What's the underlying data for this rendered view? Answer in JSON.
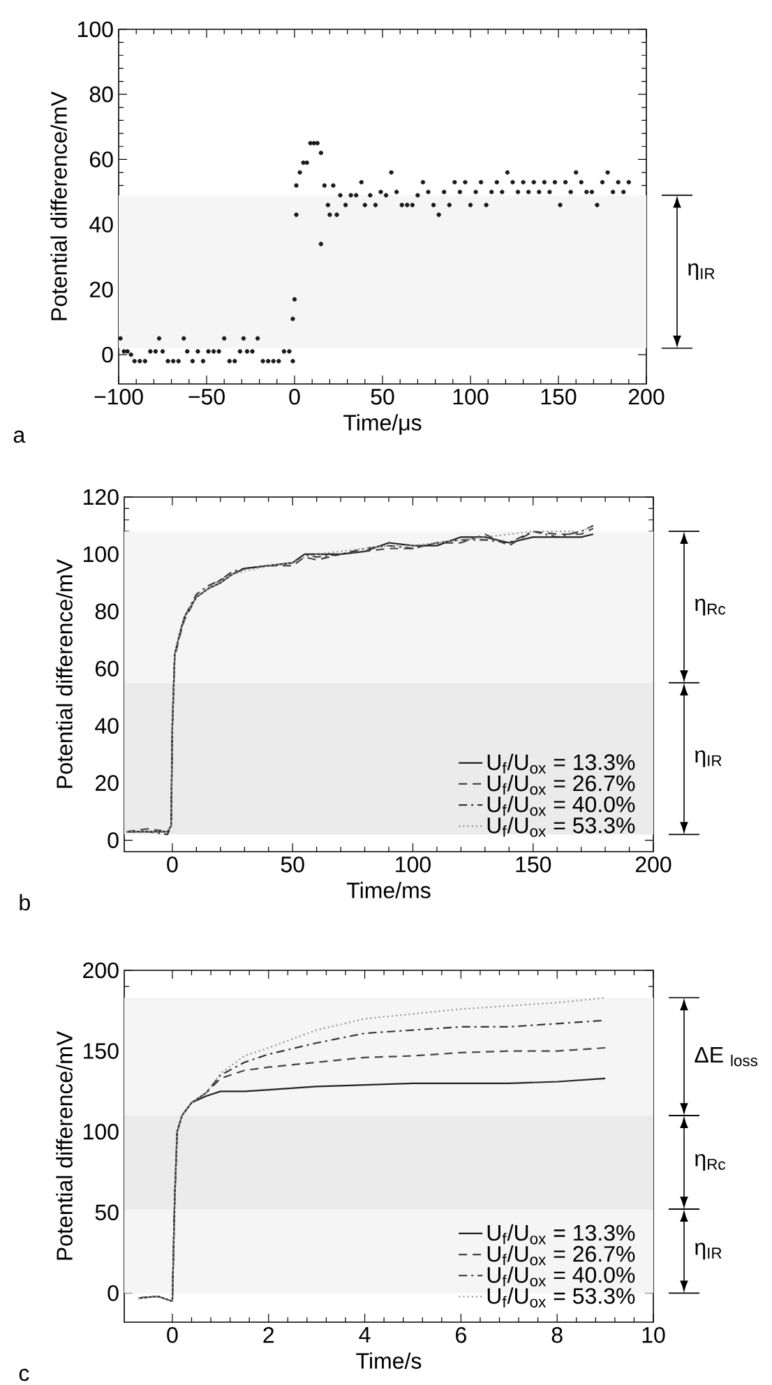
{
  "chart_data": [
    {
      "type": "scatter",
      "xlabel": "Time/μs",
      "ylabel": "Potential difference/mV",
      "color": "#1a1a1a",
      "marker": "circle",
      "x": [
        -99,
        -97,
        -95,
        -93,
        -91,
        -88,
        -85,
        -82,
        -79,
        -77,
        -75,
        -72,
        -69,
        -66,
        -63,
        -61,
        -58,
        -55,
        -52,
        -49,
        -46,
        -43,
        -40,
        -37,
        -34,
        -31,
        -29,
        -27,
        -24,
        -21,
        -18,
        -15,
        -12,
        -9,
        -6,
        -3,
        -1,
        -1,
        0,
        1,
        1,
        3,
        5,
        7,
        9,
        11,
        13,
        15,
        15,
        17,
        19,
        20,
        22,
        24,
        26,
        29,
        32,
        35,
        38,
        40,
        43,
        46,
        49,
        52,
        55,
        58,
        61,
        64,
        67,
        70,
        73,
        76,
        79,
        82,
        85,
        88,
        91,
        94,
        97,
        100,
        103,
        106,
        109,
        112,
        115,
        118,
        121,
        124,
        127,
        130,
        133,
        136,
        139,
        142,
        145,
        148,
        151,
        154,
        157,
        160,
        163,
        166,
        169,
        172,
        175,
        178,
        181,
        184,
        187,
        190
      ],
      "values": [
        5,
        1,
        1,
        0,
        -2,
        -2,
        -2,
        1,
        1,
        5,
        1,
        -2,
        -2,
        -2,
        5,
        1,
        -2,
        1,
        -2,
        1,
        1,
        1,
        5,
        -2,
        -2,
        1,
        5,
        1,
        1,
        5,
        -2,
        -2,
        -2,
        -2,
        1,
        1,
        -2,
        11,
        17,
        43,
        52,
        56,
        59,
        59,
        65,
        65,
        65,
        62,
        34,
        52,
        46,
        43,
        52,
        43,
        49,
        46,
        49,
        49,
        53,
        46,
        49,
        46,
        50,
        49,
        56,
        50,
        46,
        46,
        46,
        49,
        53,
        50,
        46,
        43,
        50,
        46,
        53,
        50,
        53,
        46,
        50,
        53,
        46,
        50,
        53,
        50,
        56,
        53,
        50,
        53,
        50,
        53,
        50,
        53,
        50,
        53,
        46,
        53,
        50,
        56,
        53,
        50,
        50,
        46,
        53,
        56,
        50,
        53,
        50,
        53
      ],
      "xlim": [
        -100,
        200
      ],
      "ylim": [
        -9,
        100
      ],
      "xticks": [
        {
          "value": -100,
          "label": "−100"
        },
        {
          "value": -50,
          "label": "−50"
        },
        0,
        50,
        100,
        150,
        200
      ],
      "yticks": [
        0,
        20,
        40,
        60,
        80,
        100
      ],
      "bands": [
        {
          "axis": "y",
          "from": 2,
          "to": 49,
          "label": "η$_{IR}$"
        }
      ],
      "annotations": [
        "a"
      ]
    },
    {
      "type": "line",
      "xlabel": "Time/ms",
      "ylabel": "Potential difference/mV",
      "legend": "bottom right",
      "series": [
        {
          "name": "U$_{f}$/U$_{ox}$ = 13.3%",
          "color": "#222222",
          "line_style": "solid",
          "x": [
            -19,
            -10,
            -2,
            -0.5,
            0,
            1,
            3,
            5,
            10,
            15,
            20,
            25,
            30,
            40,
            50,
            55,
            60,
            70,
            80,
            90,
            100,
            110,
            120,
            130,
            140,
            150,
            160,
            170,
            175
          ],
          "values": [
            3,
            3,
            3,
            5,
            40,
            65,
            72,
            78,
            85,
            88,
            90,
            93,
            95,
            96,
            97,
            100,
            100,
            100,
            101,
            104,
            103,
            103,
            106,
            106,
            104,
            106,
            106,
            106,
            107
          ]
        },
        {
          "name": "U$_{f}$/U$_{ox}$ = 26.7%",
          "color": "#444444",
          "line_style": "dashed",
          "x": [
            -19,
            -10,
            -2,
            -0.5,
            0,
            1,
            3,
            5,
            10,
            15,
            20,
            25,
            30,
            40,
            50,
            55,
            60,
            70,
            80,
            90,
            100,
            110,
            120,
            130,
            140,
            150,
            160,
            170,
            175
          ],
          "values": [
            3,
            4,
            3,
            5,
            40,
            64,
            71,
            77,
            85,
            88,
            91,
            93,
            95,
            96,
            96,
            99,
            98,
            100,
            101,
            102,
            102,
            104,
            104,
            107,
            103,
            108,
            107,
            107,
            109
          ]
        },
        {
          "name": "U$_{f}$/U$_{ox}$ = 40.0%",
          "color": "#333333",
          "line_style": "dashdot",
          "x": [
            -19,
            -10,
            -2,
            -0.5,
            0,
            1,
            3,
            5,
            10,
            15,
            20,
            25,
            30,
            40,
            50,
            55,
            60,
            70,
            80,
            90,
            100,
            110,
            120,
            130,
            140,
            150,
            160,
            170,
            175
          ],
          "values": [
            3,
            3,
            2,
            5,
            40,
            65,
            72,
            78,
            86,
            89,
            91,
            94,
            95,
            96,
            97,
            100,
            99,
            100,
            102,
            103,
            102,
            104,
            105,
            105,
            104,
            108,
            106,
            108,
            110
          ]
        },
        {
          "name": "U$_{f}$/U$_{ox}$ = 53.3%",
          "color": "#999999",
          "line_style": "dotted",
          "x": [
            -19,
            -10,
            -2,
            -0.5,
            0,
            1,
            3,
            5,
            10,
            15,
            20,
            25,
            30,
            40,
            50,
            55,
            60,
            70,
            80,
            90,
            100,
            110,
            120,
            130,
            140,
            150,
            160,
            170,
            175
          ],
          "values": [
            3,
            3,
            3,
            5,
            40,
            65,
            72,
            78,
            85,
            88,
            90,
            93,
            94,
            96,
            97,
            99,
            100,
            101,
            102,
            103,
            103,
            104,
            105,
            106,
            107,
            108,
            108,
            108,
            110
          ]
        }
      ],
      "xlim": [
        -20,
        200
      ],
      "ylim": [
        -4,
        120
      ],
      "xticks": [
        0,
        50,
        100,
        150,
        200
      ],
      "yticks": [
        0,
        20,
        40,
        60,
        80,
        100,
        120
      ],
      "bands": [
        {
          "axis": "y",
          "from": 55,
          "to": 108,
          "label": "η$_{Rc}$"
        },
        {
          "axis": "y",
          "from": 2,
          "to": 55,
          "label": "η$_{IR}$"
        }
      ],
      "annotations": [
        "b"
      ]
    },
    {
      "type": "line",
      "xlabel": "Time/s",
      "ylabel": "Potential difference/mV",
      "legend": "bottom right",
      "series": [
        {
          "name": "U$_{f}$/U$_{ox}$ = 13.3%",
          "color": "#222222",
          "line_style": "solid",
          "x": [
            -0.7,
            -0.3,
            0,
            0.05,
            0.1,
            0.2,
            0.4,
            0.7,
            1,
            1.5,
            2,
            3,
            4,
            5,
            6,
            7,
            8,
            9
          ],
          "values": [
            -3,
            -2,
            -5,
            60,
            100,
            110,
            118,
            122,
            125,
            125,
            126,
            128,
            129,
            130,
            130,
            130,
            131,
            133
          ]
        },
        {
          "name": "U$_{f}$/U$_{ox}$ = 26.7%",
          "color": "#444444",
          "line_style": "dashed",
          "x": [
            -0.7,
            -0.3,
            0,
            0.05,
            0.1,
            0.2,
            0.4,
            0.7,
            1,
            1.5,
            2,
            3,
            4,
            5,
            6,
            7,
            8,
            9
          ],
          "values": [
            -3,
            -2,
            -5,
            60,
            100,
            110,
            118,
            124,
            133,
            138,
            140,
            143,
            146,
            147,
            149,
            150,
            150,
            152
          ]
        },
        {
          "name": "U$_{f}$/U$_{ox}$ = 40.0%",
          "color": "#333333",
          "line_style": "dashdot",
          "x": [
            -0.7,
            -0.3,
            0,
            0.05,
            0.1,
            0.2,
            0.4,
            0.7,
            1,
            1.5,
            2,
            3,
            4,
            5,
            6,
            7,
            8,
            9
          ],
          "values": [
            -3,
            -2,
            -5,
            60,
            100,
            110,
            118,
            124,
            135,
            143,
            148,
            155,
            161,
            163,
            165,
            165,
            167,
            169
          ]
        },
        {
          "name": "U$_{f}$/U$_{ox}$ = 53.3%",
          "color": "#999999",
          "line_style": "dotted",
          "x": [
            -0.7,
            -0.3,
            0,
            0.05,
            0.1,
            0.2,
            0.4,
            0.7,
            1,
            1.5,
            2,
            3,
            4,
            5,
            6,
            7,
            8,
            9
          ],
          "values": [
            -3,
            -2,
            -5,
            60,
            100,
            110,
            118,
            124,
            136,
            147,
            152,
            163,
            170,
            173,
            176,
            178,
            180,
            183
          ]
        }
      ],
      "xlim": [
        -1,
        10
      ],
      "ylim": [
        -18,
        200
      ],
      "xticks": [
        0,
        2,
        4,
        6,
        8,
        10
      ],
      "yticks": [
        0,
        50,
        100,
        150,
        200
      ],
      "bands": [
        {
          "axis": "y",
          "from": 110,
          "to": 183,
          "label": "ΔE $_{loss}$"
        },
        {
          "axis": "y",
          "from": 52,
          "to": 110,
          "label": "η$_{Rc}$"
        },
        {
          "axis": "y",
          "from": 0,
          "to": 52,
          "label": "η$_{IR}$"
        }
      ],
      "annotations": [
        "c"
      ]
    }
  ]
}
